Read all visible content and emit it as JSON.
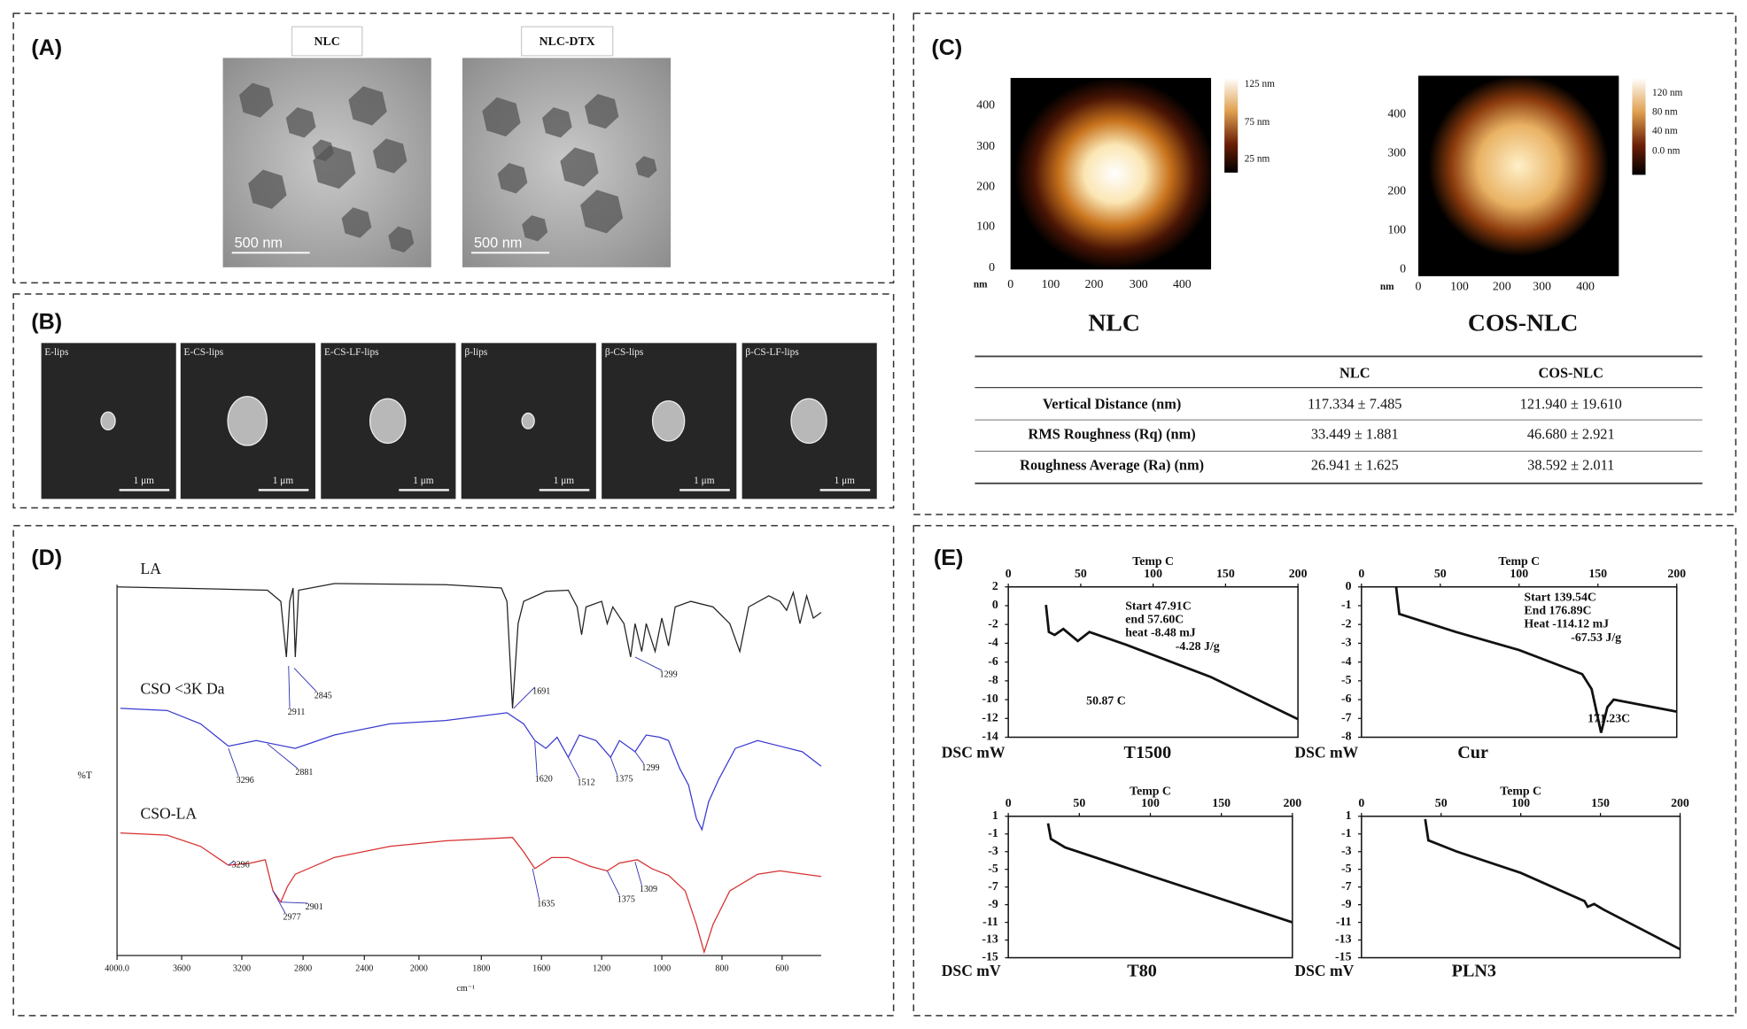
{
  "panels": {
    "A": {
      "label": "(A)",
      "images": [
        {
          "title": "NLC",
          "scale": "500  nm"
        },
        {
          "title": "NLC-DTX",
          "scale": "500  nm"
        }
      ]
    },
    "B": {
      "label": "(B)",
      "images": [
        {
          "title": "E-lips",
          "scale": "1 μm"
        },
        {
          "title": "E-CS-lips",
          "scale": "1 μm"
        },
        {
          "title": "E-CS-LF-lips",
          "scale": "1 μm"
        },
        {
          "title": "β-lips",
          "scale": "1 μm"
        },
        {
          "title": "β-CS-lips",
          "scale": "1 μm"
        },
        {
          "title": "β-CS-LF-lips",
          "scale": "1 μm"
        }
      ]
    },
    "C": {
      "label": "(C)",
      "afm": [
        {
          "title": "NLC",
          "unit": "nm",
          "yticks": [
            "400",
            "300",
            "200",
            "100",
            "0"
          ],
          "xticks": [
            "0",
            "100",
            "200",
            "300",
            "400"
          ],
          "colorbar": [
            "125 nm",
            "75 nm",
            "25 nm"
          ]
        },
        {
          "title": "COS-NLC",
          "unit": "nm",
          "yticks": [
            "400",
            "300",
            "200",
            "100",
            "0"
          ],
          "xticks": [
            "0",
            "100",
            "200",
            "300",
            "400"
          ],
          "colorbar": [
            "120 nm",
            "80 nm",
            "40 nm",
            "0.0 nm"
          ]
        }
      ],
      "table": {
        "header": [
          "NLC",
          "COS-NLC"
        ],
        "rows": [
          [
            "Vertical Distance (nm)",
            "117.334 ± 7.485",
            "121.940 ± 19.610"
          ],
          [
            "RMS Roughness (Rq) (nm)",
            "33.449 ± 1.881",
            "46.680 ± 2.921"
          ],
          [
            "Roughness Average (Ra) (nm)",
            "26.941 ± 1.625",
            "38.592 ± 2.011"
          ]
        ]
      }
    },
    "D": {
      "label": "(D)",
      "ylabel": "%T",
      "xlabel": "cm⁻¹",
      "xticks": [
        "4000.0",
        "3600",
        "3200",
        "2800",
        "2400",
        "2000",
        "1800",
        "1600",
        "1200",
        "1000",
        "800",
        "600"
      ],
      "spectra": [
        {
          "name": "LA",
          "peaks": [
            "2911",
            "2845",
            "1691",
            "1299"
          ]
        },
        {
          "name": "CSO <3K Da",
          "peaks": [
            "3296",
            "2881",
            "1620",
            "1512",
            "1375",
            "1299"
          ]
        },
        {
          "name": "CSO-LA",
          "peaks": [
            "3296",
            "2977",
            "2901",
            "1635",
            "1375",
            "1309"
          ]
        }
      ]
    },
    "E": {
      "label": "(E)",
      "plots": [
        {
          "xlabel": "Temp C",
          "xticks": [
            "0",
            "50",
            "100",
            "150",
            "200"
          ],
          "yticks": [
            "2",
            "0",
            "-2",
            "-4",
            "-6",
            "-8",
            "-10",
            "-12",
            "-14"
          ],
          "ylabel": "DSC mW",
          "sample": "T1500",
          "annotations": [
            "Start  47.91C",
            "end  57.60C",
            "heat  -8.48 mJ",
            "-4.28 J/g",
            "50.87 C"
          ]
        },
        {
          "xlabel": "Temp C",
          "xticks": [
            "0",
            "50",
            "100",
            "150",
            "200"
          ],
          "yticks": [
            "0",
            "-1",
            "-2",
            "-3",
            "-4",
            "-5",
            "-6",
            "-7",
            "-8"
          ],
          "ylabel": "DSC mW",
          "sample": "Cur",
          "annotations": [
            "Start  139.54C",
            "End    176.89C",
            "Heat   -114.12 mJ",
            "-67.53 J/g",
            "171.23C"
          ]
        },
        {
          "xlabel": "Temp C",
          "xticks": [
            "0",
            "50",
            "100",
            "150",
            "200"
          ],
          "yticks": [
            "1",
            "-1",
            "-3",
            "-5",
            "-7",
            "-9",
            "-11",
            "-13",
            "-15"
          ],
          "ylabel": "DSC mV",
          "sample": "T80",
          "annotations": []
        },
        {
          "xlabel": "Temp C",
          "xticks": [
            "0",
            "50",
            "100",
            "150",
            "200"
          ],
          "yticks": [
            "1",
            "-1",
            "-3",
            "-5",
            "-7",
            "-9",
            "-11",
            "-13",
            "-15"
          ],
          "ylabel": "DSC mV",
          "sample": "PLN3",
          "annotations": []
        }
      ]
    }
  }
}
